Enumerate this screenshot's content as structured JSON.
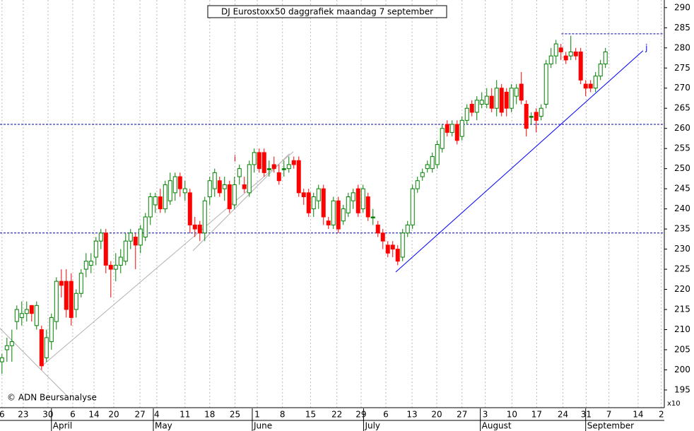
{
  "chart_data": {
    "type": "candlestick",
    "title": "DJ Eurostoxx50 daggrafiek maandag 7 september",
    "source": "© ADN Beursanalyse",
    "scale_note": "x10",
    "up_color": "#008000",
    "down_color": "#ff0000",
    "open": [
      202,
      205,
      206,
      212,
      213,
      214,
      216,
      211,
      210,
      203,
      207,
      212,
      222,
      222,
      222,
      215,
      219,
      225,
      226,
      228,
      232,
      234,
      226,
      225,
      226,
      227,
      232,
      233,
      231,
      233,
      238,
      241,
      243,
      240,
      242,
      244,
      248,
      244,
      244,
      236,
      236,
      234,
      243,
      245,
      247,
      245,
      246,
      241,
      248,
      246,
      244,
      251,
      254,
      254,
      250,
      251,
      249,
      250,
      250,
      252,
      252,
      244,
      244,
      240,
      242,
      245,
      237,
      236,
      242,
      237,
      239,
      242,
      245,
      240,
      243,
      238,
      236,
      234,
      231,
      231,
      230,
      228,
      234,
      236,
      245,
      248,
      250,
      250,
      251,
      255,
      261,
      259,
      261,
      258,
      262,
      266,
      264,
      266,
      266,
      268,
      265,
      270,
      269,
      265,
      268,
      271,
      266,
      263,
      264,
      263,
      266,
      276,
      278,
      280,
      278,
      278,
      279,
      279,
      271,
      271,
      270,
      273,
      276
    ],
    "high": [
      204,
      208,
      210,
      216,
      217,
      217,
      216,
      217,
      211,
      210,
      214,
      223,
      225,
      225,
      224,
      220,
      225,
      229,
      229,
      233,
      235,
      235,
      227,
      229,
      230,
      234,
      235,
      234,
      236,
      239,
      244,
      244,
      245,
      247,
      249,
      249,
      249,
      247,
      245,
      238,
      237,
      243,
      248,
      250,
      248,
      248,
      247,
      248,
      251,
      248,
      252,
      255,
      255,
      255,
      252,
      253,
      251,
      252,
      253,
      253,
      253,
      245,
      245,
      244,
      246,
      246,
      238,
      243,
      243,
      241,
      244,
      245,
      246,
      246,
      244,
      240,
      237,
      235,
      232,
      232,
      231,
      235,
      237,
      246,
      248,
      250,
      252,
      254,
      257,
      261,
      262,
      262,
      262,
      263,
      266,
      267,
      268,
      269,
      270,
      270,
      272,
      271,
      270,
      271,
      271,
      274,
      267,
      264,
      265,
      266,
      277,
      280,
      282,
      281,
      279,
      283,
      280,
      280,
      272,
      272,
      274,
      277,
      280
    ],
    "low": [
      199,
      202,
      202,
      210,
      211,
      212,
      212,
      210,
      200,
      202,
      205,
      210,
      218,
      213,
      211,
      213,
      218,
      223,
      224,
      226,
      230,
      224,
      218,
      222,
      224,
      226,
      230,
      225,
      229,
      232,
      236,
      239,
      239,
      239,
      241,
      242,
      243,
      242,
      234,
      233,
      232,
      232,
      241,
      243,
      243,
      242,
      239,
      240,
      246,
      244,
      243,
      249,
      249,
      248,
      248,
      249,
      246,
      248,
      249,
      250,
      243,
      241,
      238,
      238,
      240,
      236,
      235,
      235,
      234,
      236,
      238,
      240,
      238,
      239,
      237,
      236,
      233,
      230,
      228,
      228,
      226,
      227,
      233,
      235,
      244,
      247,
      249,
      249,
      250,
      254,
      258,
      258,
      256,
      257,
      261,
      263,
      262,
      265,
      265,
      264,
      263,
      263,
      263,
      264,
      266,
      266,
      258,
      261,
      259,
      262,
      265,
      275,
      276,
      277,
      276,
      277,
      277,
      271,
      268,
      269,
      269,
      272,
      275
    ],
    "close": [
      203,
      206,
      207,
      215,
      214,
      215,
      214,
      216,
      201,
      208,
      213,
      222,
      221,
      215,
      213,
      219,
      224,
      227,
      227,
      232,
      234,
      226,
      225,
      226,
      228,
      232,
      234,
      231,
      235,
      238,
      243,
      243,
      240,
      246,
      247,
      248,
      245,
      245,
      236,
      235,
      234,
      242,
      247,
      249,
      244,
      246,
      240,
      246,
      250,
      245,
      251,
      254,
      250,
      249,
      250,
      250,
      247,
      250,
      251,
      251,
      244,
      243,
      239,
      243,
      245,
      238,
      236,
      242,
      235,
      240,
      243,
      244,
      239,
      245,
      238,
      238,
      234,
      232,
      229,
      230,
      227,
      234,
      236,
      245,
      247,
      249,
      251,
      253,
      256,
      260,
      259,
      261,
      257,
      262,
      265,
      264,
      267,
      267,
      268,
      265,
      270,
      264,
      265,
      270,
      270,
      267,
      260,
      263,
      262,
      265,
      276,
      278,
      281,
      279,
      277,
      279,
      278,
      272,
      270,
      270,
      273,
      276,
      279
    ],
    "xlim": [
      -0.4,
      133.9
    ],
    "xticks": [
      {
        "value": 0,
        "label": "6"
      },
      {
        "value": 4.3,
        "label": "23"
      },
      {
        "value": 9.3,
        "label": "30"
      },
      {
        "value": 14.3,
        "label": "6"
      },
      {
        "value": 18.6,
        "label": "14"
      },
      {
        "value": 22.6,
        "label": "20"
      },
      {
        "value": 27.9,
        "label": "27"
      },
      {
        "value": 31.3,
        "label": "4"
      },
      {
        "value": 37,
        "label": "11"
      },
      {
        "value": 42,
        "label": "18"
      },
      {
        "value": 47.1,
        "label": "25"
      },
      {
        "value": 51.6,
        "label": "1"
      },
      {
        "value": 56.7,
        "label": "8"
      },
      {
        "value": 62.4,
        "label": "15"
      },
      {
        "value": 67.7,
        "label": "22"
      },
      {
        "value": 72.6,
        "label": "29"
      },
      {
        "value": 77.6,
        "label": "6"
      },
      {
        "value": 82.9,
        "label": "13"
      },
      {
        "value": 87.9,
        "label": "20"
      },
      {
        "value": 93,
        "label": "27"
      },
      {
        "value": 97.7,
        "label": "3"
      },
      {
        "value": 103.1,
        "label": "10"
      },
      {
        "value": 108.1,
        "label": "17"
      },
      {
        "value": 113.4,
        "label": "24"
      },
      {
        "value": 118.1,
        "label": "31"
      },
      {
        "value": 122.7,
        "label": "7"
      },
      {
        "value": 128.6,
        "label": "14"
      },
      {
        "value": 133.3,
        "label": "2"
      }
    ],
    "months": [
      {
        "value": 10,
        "label": "April"
      },
      {
        "value": 30.6,
        "label": "May"
      },
      {
        "value": 50.6,
        "label": "June"
      },
      {
        "value": 73.1,
        "label": "July"
      },
      {
        "value": 96.7,
        "label": "August"
      },
      {
        "value": 118,
        "label": "September"
      }
    ],
    "ylim": [
      190.6,
      291.9
    ],
    "yticks": [
      195,
      200,
      205,
      210,
      215,
      220,
      225,
      230,
      235,
      240,
      245,
      250,
      255,
      260,
      265,
      270,
      275,
      280,
      285,
      290
    ],
    "hlines": [
      {
        "value": 261,
        "from": -0.4,
        "color": "#0000aa"
      },
      {
        "value": 234,
        "from": -0.4,
        "color": "#0000aa"
      },
      {
        "value": 283.5,
        "from": 113.1,
        "color": "#0000aa"
      }
    ],
    "trendlines": [
      {
        "x": [
          79.6,
          129.6
        ],
        "y": [
          224.3,
          279.3
        ],
        "color": "#0000ff"
      },
      {
        "x": [
          8.1,
          58.9
        ],
        "y": [
          201,
          254.2
        ],
        "color": "#b0b0b0"
      },
      {
        "x": [
          38.6,
          58.1
        ],
        "y": [
          229.6,
          253.7
        ],
        "color": "#b0b0b0"
      },
      {
        "x": [
          -0.4,
          13.1
        ],
        "y": [
          210.3,
          193.6
        ],
        "color": "#b0b0b0"
      }
    ],
    "annotations": [
      {
        "text": "i",
        "x": 47.1,
        "y": 252.4,
        "color": "#ff0000"
      },
      {
        "text": "j",
        "x": 130.3,
        "y": 280,
        "color": "#0000ff"
      }
    ]
  }
}
